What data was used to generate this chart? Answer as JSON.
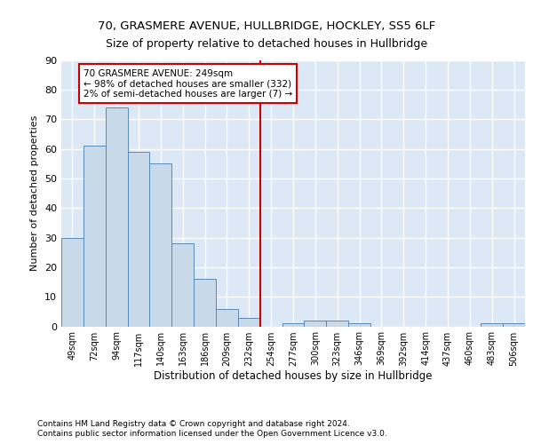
{
  "title1": "70, GRASMERE AVENUE, HULLBRIDGE, HOCKLEY, SS5 6LF",
  "title2": "Size of property relative to detached houses in Hullbridge",
  "xlabel": "Distribution of detached houses by size in Hullbridge",
  "ylabel": "Number of detached properties",
  "footer1": "Contains HM Land Registry data © Crown copyright and database right 2024.",
  "footer2": "Contains public sector information licensed under the Open Government Licence v3.0.",
  "bar_labels": [
    "49sqm",
    "72sqm",
    "94sqm",
    "117sqm",
    "140sqm",
    "163sqm",
    "186sqm",
    "209sqm",
    "232sqm",
    "254sqm",
    "277sqm",
    "300sqm",
    "323sqm",
    "346sqm",
    "369sqm",
    "392sqm",
    "414sqm",
    "437sqm",
    "460sqm",
    "483sqm",
    "506sqm"
  ],
  "bar_values": [
    30,
    61,
    74,
    59,
    55,
    28,
    16,
    6,
    3,
    0,
    1,
    2,
    2,
    1,
    0,
    0,
    0,
    0,
    0,
    1,
    1
  ],
  "bar_color": "#c8d9ea",
  "bar_edge_color": "#5a8ab5",
  "bg_color": "#dce8f5",
  "grid_color": "#ffffff",
  "vline_x": 8.5,
  "vline_color": "#cc0000",
  "annotation_text": "70 GRASMERE AVENUE: 249sqm\n← 98% of detached houses are smaller (332)\n2% of semi-detached houses are larger (7) →",
  "annotation_box_color": "#cc0000",
  "ylim": [
    0,
    90
  ],
  "yticks": [
    0,
    10,
    20,
    30,
    40,
    50,
    60,
    70,
    80,
    90
  ]
}
